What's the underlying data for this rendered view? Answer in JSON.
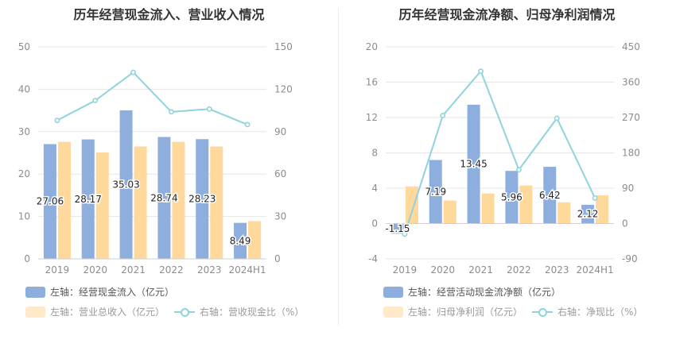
{
  "chart_data": [
    {
      "type": "bar",
      "title": "历年经营现金流入、营业收入情况",
      "categories": [
        "2019",
        "2020",
        "2021",
        "2022",
        "2023",
        "2024H1"
      ],
      "left_axis": {
        "ylim": [
          0,
          50
        ],
        "ticks": [
          0,
          10,
          20,
          30,
          40,
          50
        ]
      },
      "right_axis": {
        "ylim": [
          0,
          150
        ],
        "ticks": [
          0,
          30,
          60,
          90,
          120,
          150
        ]
      },
      "series": [
        {
          "name": "左轴：经营现金流入（亿元）",
          "kind": "bar",
          "axis": "left",
          "color": "#8eaede",
          "values": [
            27.06,
            28.17,
            35.03,
            28.74,
            28.23,
            8.49
          ],
          "labels": [
            "27.06",
            "28.17",
            "35.03",
            "28.74",
            "28.23",
            "8.49"
          ]
        },
        {
          "name": "左轴：营业总收入（亿元）",
          "kind": "bar",
          "axis": "left",
          "color": "#ffd89b",
          "values": [
            27.6,
            25.1,
            26.5,
            27.6,
            26.5,
            8.9
          ]
        },
        {
          "name": "右轴：营收现金比（%）",
          "kind": "line",
          "axis": "right",
          "color": "#8fd4dc",
          "values": [
            98,
            112,
            132,
            104,
            106,
            95
          ]
        }
      ]
    },
    {
      "type": "bar",
      "title": "历年经营现金流净额、归母净利润情况",
      "categories": [
        "2019",
        "2020",
        "2021",
        "2022",
        "2023",
        "2024H1"
      ],
      "left_axis": {
        "ylim": [
          -4,
          20
        ],
        "ticks": [
          -4,
          0,
          4,
          8,
          12,
          16,
          20
        ]
      },
      "right_axis": {
        "ylim": [
          -90,
          450
        ],
        "ticks": [
          -90,
          0,
          90,
          180,
          270,
          360,
          450
        ]
      },
      "series": [
        {
          "name": "左轴：经营活动现金流净额（亿元）",
          "kind": "bar",
          "axis": "left",
          "color": "#8eaede",
          "values": [
            -1.15,
            7.19,
            13.45,
            5.96,
            6.42,
            2.12
          ],
          "labels": [
            "-1.15",
            "7.19",
            "13.45",
            "5.96",
            "6.42",
            "2.12"
          ]
        },
        {
          "name": "左轴：归母净利润（亿元）",
          "kind": "bar",
          "axis": "left",
          "color": "#ffd89b",
          "values": [
            4.2,
            2.6,
            3.4,
            4.3,
            2.4,
            3.2
          ]
        },
        {
          "name": "右轴：净现比（%）",
          "kind": "line",
          "axis": "right",
          "color": "#8fd4dc",
          "values": [
            -27,
            275,
            388,
            137,
            268,
            65
          ]
        }
      ]
    }
  ]
}
